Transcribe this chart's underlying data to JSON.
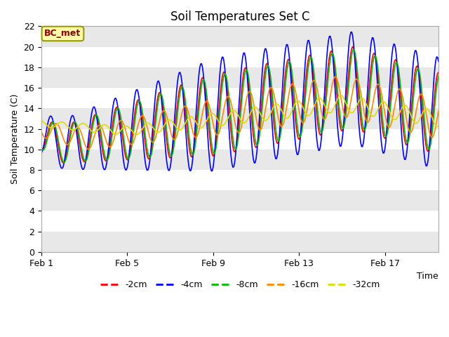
{
  "title": "Soil Temperatures Set C",
  "xlabel": "Time",
  "ylabel": "Soil Temperature (C)",
  "ylim": [
    0,
    22
  ],
  "yticks": [
    0,
    2,
    4,
    6,
    8,
    10,
    12,
    14,
    16,
    18,
    20,
    22
  ],
  "xtick_labels": [
    "Feb 1",
    "Feb 5",
    "Feb 9",
    "Feb 13",
    "Feb 17"
  ],
  "xtick_positions": [
    0,
    4,
    8,
    12,
    16
  ],
  "n_days": 18.5,
  "series_colors": [
    "#ff0000",
    "#0000ff",
    "#00bb00",
    "#ff8800",
    "#dddd00"
  ],
  "series_labels": [
    "-2cm",
    "-4cm",
    "-8cm",
    "-16cm",
    "-32cm"
  ],
  "annotation_text": "BC_met",
  "bg_color": "#ffffff",
  "plot_bg_color": "#ffffff",
  "title_fontsize": 12,
  "band_colors": [
    "#e8e8e8",
    "#ffffff"
  ],
  "band_ranges": [
    [
      0,
      2
    ],
    [
      2,
      4
    ],
    [
      4,
      6
    ],
    [
      6,
      8
    ],
    [
      8,
      10
    ],
    [
      10,
      12
    ],
    [
      12,
      14
    ],
    [
      14,
      16
    ],
    [
      16,
      18
    ],
    [
      18,
      20
    ],
    [
      20,
      22
    ]
  ]
}
